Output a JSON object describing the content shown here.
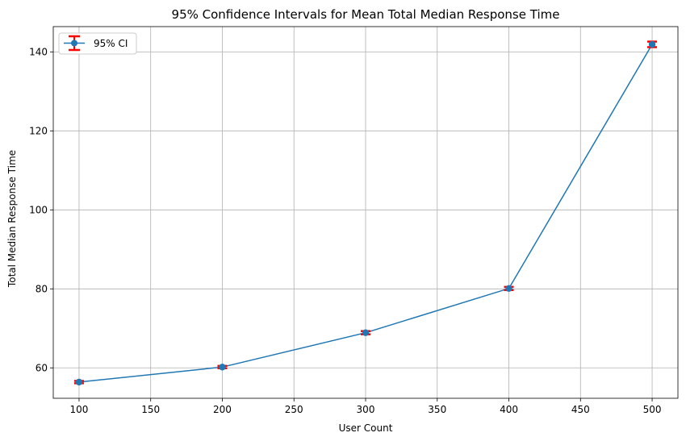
{
  "chart_data": {
    "type": "line",
    "title": "95% Confidence Intervals for Mean Total Median Response Time",
    "xlabel": "User Count",
    "ylabel": "Total Median Response Time",
    "xlim": [
      82,
      518
    ],
    "ylim": [
      52.3,
      146.4
    ],
    "xticks": [
      100,
      150,
      200,
      250,
      300,
      350,
      400,
      450,
      500
    ],
    "yticks": [
      60,
      80,
      100,
      120,
      140
    ],
    "grid": true,
    "legend_position": "top-left",
    "series": [
      {
        "name": "95% CI",
        "color": "#1f77b4",
        "errorbar_color": "#ff0000",
        "marker": "circle",
        "x": [
          100,
          200,
          300,
          400,
          500
        ],
        "y": [
          56.4,
          60.2,
          68.9,
          80.1,
          141.9
        ],
        "ci_half_width": [
          0.3,
          0.3,
          0.4,
          0.4,
          0.7
        ]
      }
    ]
  }
}
